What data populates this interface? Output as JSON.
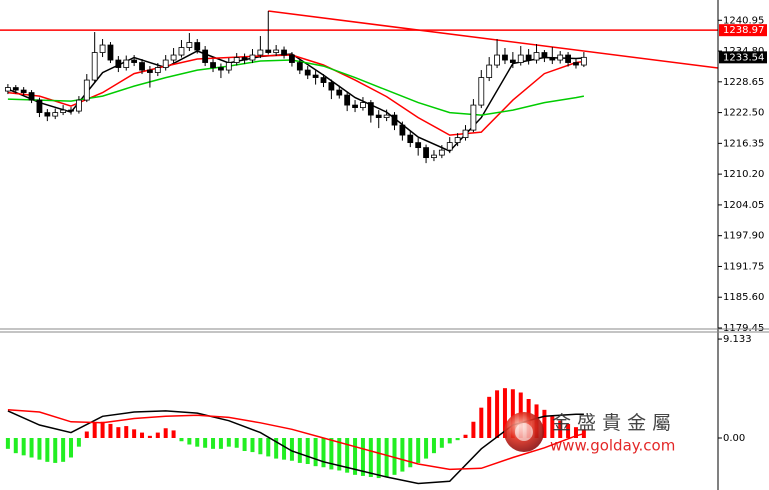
{
  "chart_data": [
    {
      "type": "candlestick",
      "xlim": [
        -1,
        90
      ],
      "ylim": [
        1179.45,
        1245.0
      ],
      "yticks": [
        1240.95,
        {
          "value": 1234.8,
          "label": "1234.80"
        },
        1228.65,
        {
          "value": 1222.5,
          "label": "1222.50"
        },
        1216.35,
        {
          "value": 1210.2,
          "label": "1210.20"
        },
        1204.05,
        {
          "value": 1197.9,
          "label": "1197.90"
        },
        1191.75,
        {
          "value": 1185.6,
          "label": "1185.60"
        },
        1179.45
      ],
      "ohlc": [
        [
          1226.8,
          1228.2,
          1226.2,
          1227.5
        ],
        [
          1227.5,
          1228.0,
          1226.3,
          1227.0
        ],
        [
          1227.0,
          1227.6,
          1225.9,
          1226.5
        ],
        [
          1226.5,
          1227.0,
          1224.4,
          1225.0
        ],
        [
          1225.0,
          1225.5,
          1221.6,
          1222.5
        ],
        [
          1222.5,
          1223.2,
          1220.8,
          1221.8
        ],
        [
          1221.8,
          1223.3,
          1221.2,
          1222.5
        ],
        [
          1222.5,
          1224.0,
          1222.0,
          1223.0
        ],
        [
          1223.0,
          1223.6,
          1222.1,
          1222.8
        ],
        [
          1222.8,
          1225.8,
          1222.3,
          1225.0
        ],
        [
          1225.0,
          1230.2,
          1224.6,
          1229.0
        ],
        [
          1229.0,
          1238.6,
          1228.5,
          1234.5
        ],
        [
          1234.5,
          1237.2,
          1233.6,
          1236.0
        ],
        [
          1236.0,
          1236.6,
          1232.4,
          1233.0
        ],
        [
          1233.0,
          1233.8,
          1230.6,
          1231.5
        ],
        [
          1231.5,
          1233.9,
          1230.9,
          1233.0
        ],
        [
          1233.0,
          1234.0,
          1231.8,
          1232.5
        ],
        [
          1232.5,
          1233.2,
          1230.2,
          1231.0
        ],
        [
          1231.0,
          1231.8,
          1227.5,
          1230.5
        ],
        [
          1230.5,
          1232.4,
          1229.8,
          1231.5
        ],
        [
          1231.5,
          1234.0,
          1230.9,
          1233.0
        ],
        [
          1233.0,
          1235.4,
          1232.4,
          1234.0
        ],
        [
          1234.0,
          1237.0,
          1233.5,
          1235.5
        ],
        [
          1235.5,
          1238.4,
          1234.8,
          1236.5
        ],
        [
          1236.5,
          1237.2,
          1234.3,
          1235.0
        ],
        [
          1235.0,
          1235.8,
          1231.8,
          1232.5
        ],
        [
          1232.5,
          1233.2,
          1230.6,
          1231.5
        ],
        [
          1231.5,
          1232.3,
          1229.4,
          1231.0
        ],
        [
          1231.0,
          1233.4,
          1230.3,
          1232.5
        ],
        [
          1232.5,
          1234.4,
          1231.9,
          1233.5
        ],
        [
          1233.5,
          1234.3,
          1232.2,
          1233.0
        ],
        [
          1233.0,
          1235.2,
          1232.4,
          1234.0
        ],
        [
          1234.0,
          1237.8,
          1233.4,
          1235.0
        ],
        [
          1235.0,
          1242.8,
          1234.1,
          1234.5
        ],
        [
          1234.5,
          1236.0,
          1233.8,
          1235.0
        ],
        [
          1235.0,
          1235.7,
          1233.3,
          1234.0
        ],
        [
          1234.0,
          1234.6,
          1231.7,
          1232.5
        ],
        [
          1232.5,
          1233.1,
          1230.2,
          1231.0
        ],
        [
          1231.0,
          1231.8,
          1229.2,
          1230.0
        ],
        [
          1230.0,
          1230.9,
          1228.1,
          1229.5
        ],
        [
          1229.5,
          1230.2,
          1227.6,
          1228.5
        ],
        [
          1228.5,
          1229.1,
          1225.2,
          1227.0
        ],
        [
          1227.0,
          1227.9,
          1225.3,
          1226.0
        ],
        [
          1226.0,
          1226.7,
          1222.8,
          1224.0
        ],
        [
          1224.0,
          1225.0,
          1222.6,
          1223.5
        ],
        [
          1223.5,
          1225.6,
          1222.9,
          1224.5
        ],
        [
          1224.5,
          1225.0,
          1220.5,
          1222.0
        ],
        [
          1222.0,
          1223.0,
          1219.4,
          1221.5
        ],
        [
          1221.5,
          1223.1,
          1220.8,
          1222.0
        ],
        [
          1222.0,
          1222.6,
          1219.0,
          1220.0
        ],
        [
          1220.0,
          1220.7,
          1216.9,
          1218.0
        ],
        [
          1218.0,
          1218.8,
          1215.6,
          1216.5
        ],
        [
          1216.5,
          1217.4,
          1213.9,
          1215.5
        ],
        [
          1215.5,
          1216.1,
          1212.4,
          1213.5
        ],
        [
          1213.5,
          1215.0,
          1212.8,
          1214.0
        ],
        [
          1214.0,
          1216.0,
          1213.4,
          1215.0
        ],
        [
          1215.0,
          1217.6,
          1214.4,
          1216.5
        ],
        [
          1216.5,
          1218.4,
          1215.8,
          1217.5
        ],
        [
          1217.5,
          1220.0,
          1216.9,
          1219.0
        ],
        [
          1219.0,
          1225.2,
          1218.6,
          1224.0
        ],
        [
          1224.0,
          1231.0,
          1223.4,
          1229.5
        ],
        [
          1229.5,
          1233.6,
          1228.8,
          1232.0
        ],
        [
          1232.0,
          1237.2,
          1231.4,
          1234.0
        ],
        [
          1234.0,
          1235.4,
          1232.2,
          1233.0
        ],
        [
          1233.0,
          1234.6,
          1231.4,
          1232.5
        ],
        [
          1232.5,
          1235.8,
          1231.9,
          1234.0
        ],
        [
          1234.0,
          1235.2,
          1232.1,
          1233.0
        ],
        [
          1233.0,
          1236.2,
          1232.3,
          1234.5
        ],
        [
          1234.5,
          1235.0,
          1232.6,
          1233.5
        ],
        [
          1233.5,
          1235.6,
          1232.2,
          1233.0
        ],
        [
          1233.0,
          1234.8,
          1232.3,
          1234.0
        ],
        [
          1234.0,
          1234.6,
          1231.7,
          1232.5
        ],
        [
          1232.5,
          1233.4,
          1231.3,
          1232.0
        ],
        [
          1232.0,
          1234.6,
          1231.6,
          1233.54
        ]
      ],
      "up_color": "#ffffff",
      "down_color": "#000000",
      "lines": [
        {
          "color": "#000000",
          "x": [
            0,
            4,
            8,
            12,
            16,
            20,
            24,
            28,
            32,
            36,
            40,
            44,
            48,
            52,
            56,
            60,
            64,
            68,
            72,
            73
          ],
          "values": [
            1227.2,
            1224.5,
            1222.6,
            1230.5,
            1233.5,
            1231.5,
            1234.8,
            1232.4,
            1233.7,
            1234.2,
            1230.0,
            1225.5,
            1222.6,
            1217.6,
            1214.8,
            1221.5,
            1232.3,
            1233.5,
            1233.3,
            1233.4
          ]
        },
        {
          "color": "#ff0000",
          "x": [
            0,
            4,
            8,
            12,
            16,
            20,
            24,
            28,
            32,
            36,
            40,
            44,
            48,
            52,
            56,
            60,
            64,
            68,
            72,
            73
          ],
          "values": [
            1226.5,
            1225.8,
            1223.8,
            1226.5,
            1230.3,
            1231.8,
            1233.2,
            1233.5,
            1233.8,
            1234.0,
            1232.0,
            1229.0,
            1225.7,
            1221.5,
            1218.0,
            1218.6,
            1225.0,
            1230.3,
            1232.5,
            1232.7
          ]
        },
        {
          "color": "#00cc00",
          "x": [
            0,
            4,
            8,
            12,
            16,
            20,
            24,
            28,
            32,
            36,
            40,
            44,
            48,
            52,
            56,
            60,
            64,
            68,
            72,
            73
          ],
          "values": [
            1225.2,
            1225.0,
            1224.8,
            1225.8,
            1227.8,
            1229.5,
            1231.0,
            1231.8,
            1232.8,
            1233.0,
            1231.8,
            1229.5,
            1227.0,
            1224.5,
            1222.5,
            1222.0,
            1223.0,
            1224.5,
            1225.5,
            1225.8
          ]
        }
      ],
      "hline": {
        "value": 1238.97,
        "color": "#ff0000"
      },
      "trendline": {
        "x": [
          33,
          90
        ],
        "values": [
          1242.8,
          1231.4
        ],
        "color": "#ff0000"
      },
      "last_price": 1233.54
    },
    {
      "type": "macd",
      "xlim": [
        -1,
        90
      ],
      "ylim": [
        -4.8,
        9.6
      ],
      "yticks": [
        9.133,
        {
          "value": 0,
          "label": "0.00"
        }
      ],
      "histogram": [
        -1.0,
        -1.4,
        -1.6,
        -1.8,
        -2.0,
        -2.2,
        -2.3,
        -2.2,
        -1.8,
        -0.8,
        0.6,
        1.4,
        1.5,
        1.3,
        1.0,
        1.1,
        0.8,
        0.5,
        0.2,
        0.5,
        0.9,
        0.7,
        -0.3,
        -0.6,
        -0.8,
        -0.9,
        -1.0,
        -1.0,
        -0.8,
        -0.9,
        -1.2,
        -1.3,
        -1.5,
        -1.7,
        -1.9,
        -2.0,
        -2.1,
        -2.3,
        -2.4,
        -2.6,
        -2.7,
        -2.9,
        -3.0,
        -3.2,
        -3.4,
        -3.5,
        -3.6,
        -3.7,
        -3.6,
        -3.4,
        -3.1,
        -2.7,
        -2.3,
        -1.9,
        -1.4,
        -0.9,
        -0.5,
        -0.2,
        0.3,
        1.5,
        2.8,
        3.8,
        4.4,
        4.6,
        4.5,
        4.2,
        3.6,
        3.1,
        2.6,
        2.0,
        1.6,
        1.3,
        1.0,
        0.8
      ],
      "pos_color": "#ff0000",
      "neg_color": "#22ee22",
      "lines": [
        {
          "color": "#000000",
          "x": [
            0,
            4,
            8,
            12,
            16,
            20,
            24,
            28,
            32,
            36,
            40,
            44,
            48,
            52,
            56,
            60,
            64,
            68,
            72,
            73
          ],
          "values": [
            2.5,
            1.2,
            0.5,
            2.0,
            2.4,
            2.5,
            2.3,
            1.6,
            0.5,
            -1.2,
            -2.2,
            -2.9,
            -3.6,
            -4.2,
            -4.0,
            -1.0,
            1.2,
            2.0,
            2.2,
            2.2
          ]
        },
        {
          "color": "#ff0000",
          "x": [
            0,
            4,
            8,
            12,
            16,
            20,
            24,
            28,
            32,
            36,
            40,
            44,
            48,
            52,
            56,
            60,
            64,
            68,
            72,
            73
          ],
          "values": [
            2.6,
            2.4,
            1.5,
            1.4,
            1.8,
            2.0,
            2.1,
            1.9,
            1.4,
            0.8,
            0.0,
            -0.8,
            -1.6,
            -2.4,
            -2.9,
            -2.8,
            -1.8,
            -0.9,
            0.2,
            0.4
          ]
        }
      ],
      "watermark": {
        "title": "金 盛 貴 金 屬",
        "url": "www.golday.com"
      }
    }
  ]
}
